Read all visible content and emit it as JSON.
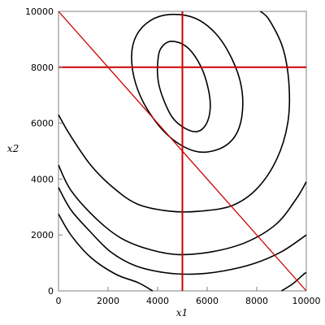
{
  "chart_data": {
    "type": "contour",
    "title": "",
    "xlabel": "x1",
    "ylabel": "x2",
    "xlim": [
      0,
      10000
    ],
    "ylim": [
      0,
      10000
    ],
    "grid": false,
    "x_ticks": [
      {
        "value": 0,
        "label": "0"
      },
      {
        "value": 2000,
        "label": "2000"
      },
      {
        "value": 4000,
        "label": "4000"
      },
      {
        "value": 6000,
        "label": "6000"
      },
      {
        "value": 8000,
        "label": "8000"
      },
      {
        "value": 10000,
        "label": "10000"
      }
    ],
    "y_ticks": [
      {
        "value": 0,
        "label": "0"
      },
      {
        "value": 2000,
        "label": "2000"
      },
      {
        "value": 4000,
        "label": "4000"
      },
      {
        "value": 6000,
        "label": "6000"
      },
      {
        "value": 8000,
        "label": "8000"
      },
      {
        "value": 10000,
        "label": "10000"
      }
    ],
    "contour_color": "#000000",
    "constraint_color": "#cc0000",
    "contours": [
      {
        "points": [
          [
            4000,
            8100
          ],
          [
            4120,
            8660
          ],
          [
            4550,
            8930
          ],
          [
            5200,
            8710
          ],
          [
            5750,
            8020
          ],
          [
            6050,
            7200
          ],
          [
            6120,
            6500
          ],
          [
            5950,
            5950
          ],
          [
            5600,
            5700
          ],
          [
            5100,
            5820
          ],
          [
            4600,
            6200
          ],
          [
            4250,
            6820
          ],
          [
            4030,
            7470
          ],
          [
            4000,
            8100
          ]
        ],
        "closed": true
      },
      {
        "points": [
          [
            2950,
            8400
          ],
          [
            3150,
            9150
          ],
          [
            3720,
            9680
          ],
          [
            4500,
            9890
          ],
          [
            5500,
            9760
          ],
          [
            6350,
            9200
          ],
          [
            7000,
            8300
          ],
          [
            7380,
            7300
          ],
          [
            7400,
            6250
          ],
          [
            7080,
            5480
          ],
          [
            6400,
            5050
          ],
          [
            5500,
            5000
          ],
          [
            4500,
            5500
          ],
          [
            3650,
            6400
          ],
          [
            3120,
            7400
          ],
          [
            2950,
            8400
          ]
        ],
        "closed": true
      },
      {
        "points": [
          [
            0,
            6300
          ],
          [
            450,
            5600
          ],
          [
            1300,
            4500
          ],
          [
            2200,
            3700
          ],
          [
            3200,
            3100
          ],
          [
            4500,
            2850
          ],
          [
            5700,
            2850
          ],
          [
            7000,
            3050
          ],
          [
            8000,
            3650
          ],
          [
            8800,
            4700
          ],
          [
            9250,
            6000
          ],
          [
            9300,
            7400
          ],
          [
            9050,
            8700
          ],
          [
            8500,
            9700
          ],
          [
            8150,
            10000
          ]
        ],
        "closed": false
      },
      {
        "points": [
          [
            0,
            4500
          ],
          [
            500,
            3600
          ],
          [
            1500,
            2600
          ],
          [
            2500,
            1900
          ],
          [
            3600,
            1500
          ],
          [
            4800,
            1300
          ],
          [
            6200,
            1400
          ],
          [
            7600,
            1750
          ],
          [
            8800,
            2400
          ],
          [
            9600,
            3300
          ],
          [
            10000,
            3900
          ]
        ],
        "closed": false
      },
      {
        "points": [
          [
            0,
            3700
          ],
          [
            500,
            2900
          ],
          [
            1300,
            2100
          ],
          [
            2100,
            1400
          ],
          [
            3100,
            900
          ],
          [
            4300,
            650
          ],
          [
            5500,
            600
          ],
          [
            6700,
            720
          ],
          [
            7900,
            980
          ],
          [
            9000,
            1400
          ],
          [
            10000,
            2000
          ]
        ],
        "closed": false
      },
      {
        "points": [
          [
            0,
            2750
          ],
          [
            500,
            2000
          ],
          [
            1300,
            1200
          ],
          [
            2300,
            600
          ],
          [
            3200,
            300
          ],
          [
            3800,
            0
          ]
        ],
        "closed": false
      },
      {
        "points": [
          [
            9000,
            0
          ],
          [
            9450,
            250
          ],
          [
            9900,
            600
          ],
          [
            10000,
            650
          ]
        ],
        "closed": false
      }
    ],
    "constraint_lines": [
      {
        "points": [
          [
            0,
            10000
          ],
          [
            10000,
            0
          ]
        ]
      },
      {
        "points": [
          [
            5000,
            0
          ],
          [
            5000,
            10000
          ]
        ]
      },
      {
        "points": [
          [
            0,
            8000
          ],
          [
            10000,
            8000
          ]
        ]
      }
    ]
  }
}
